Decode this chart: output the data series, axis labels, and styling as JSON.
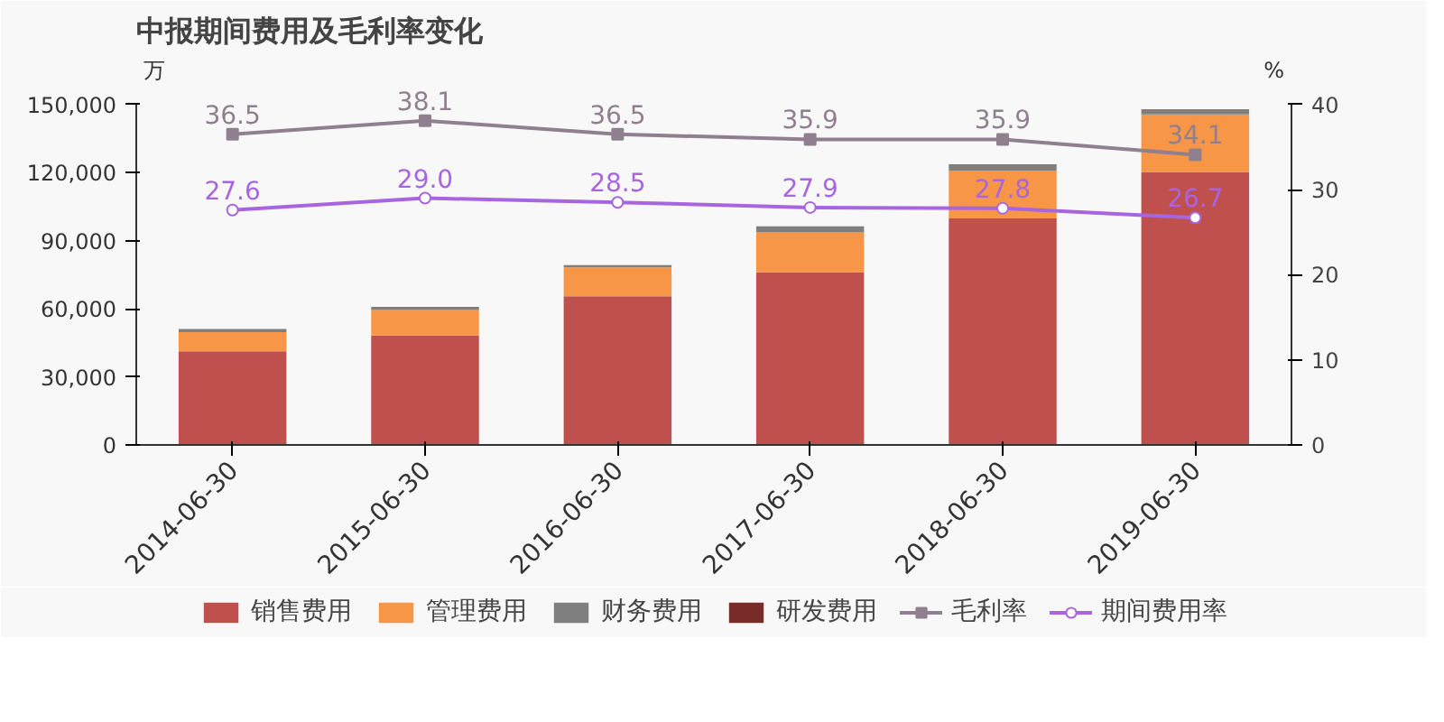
{
  "chart_data": {
    "type": "bar",
    "title": "中报期间费用及毛利率变化",
    "ylabel": "万",
    "y2label": "%",
    "categories": [
      "2014-06-30",
      "2015-06-30",
      "2016-06-30",
      "2017-06-30",
      "2018-06-30",
      "2019-06-30"
    ],
    "stacked": true,
    "series": [
      {
        "name": "销售费用",
        "color": "#c0504d",
        "values": [
          41300,
          48200,
          65500,
          76100,
          99800,
          120300
        ]
      },
      {
        "name": "管理费用",
        "color": "#f79646",
        "values": [
          8400,
          11300,
          12700,
          17600,
          21000,
          25300
        ]
      },
      {
        "name": "财务费用",
        "color": "#7f7f7f",
        "values": [
          1400,
          1300,
          1000,
          2600,
          2900,
          2300
        ]
      },
      {
        "name": "研发费用",
        "color": "#772c2a",
        "values": [
          0,
          0,
          0,
          0,
          0,
          0
        ]
      },
      {
        "name": "毛利率",
        "type": "line",
        "axis": "y2",
        "marker": "square",
        "color": "#8f7f8f",
        "values": [
          36.5,
          38.1,
          36.5,
          35.9,
          35.9,
          34.1
        ],
        "value_labels": [
          "36.5",
          "38.1",
          "36.5",
          "35.9",
          "35.9",
          "34.1"
        ]
      },
      {
        "name": "期间费用率",
        "type": "line",
        "axis": "y2",
        "marker": "circle",
        "color": "#a865e0",
        "values": [
          27.6,
          29.0,
          28.5,
          27.9,
          27.8,
          26.7
        ],
        "value_labels": [
          "27.6",
          "29.0",
          "28.5",
          "27.9",
          "27.8",
          "26.7"
        ]
      }
    ],
    "ylim": [
      0,
      150000
    ],
    "yticks": [
      {
        "value": 0,
        "label": "0"
      },
      {
        "value": 30000,
        "label": "30,000"
      },
      {
        "value": 60000,
        "label": "60,000"
      },
      {
        "value": 90000,
        "label": "90,000"
      },
      {
        "value": 120000,
        "label": "120,000"
      },
      {
        "value": 150000,
        "label": "150,000"
      }
    ],
    "y2lim": [
      0,
      40
    ],
    "y2ticks": [
      0,
      10,
      20,
      30,
      40
    ],
    "grid": false,
    "legend": "bottom"
  }
}
